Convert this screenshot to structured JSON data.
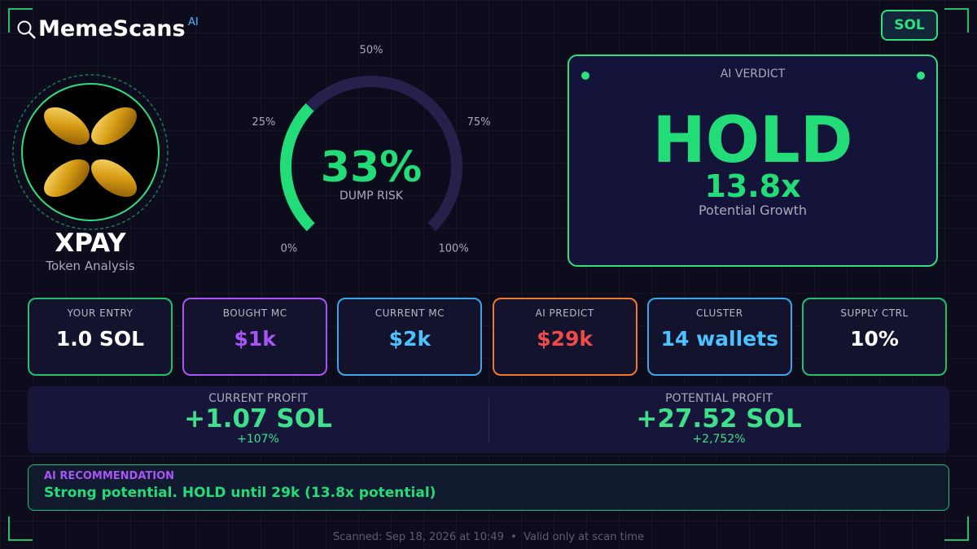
{
  "header": {
    "brand": "MemeScans",
    "brand_badge": "AI",
    "chain": "SOL"
  },
  "token": {
    "symbol": "XPAY",
    "subtitle": "Token Analysis"
  },
  "gauge": {
    "value": 33,
    "value_label": "33%",
    "label": "DUMP RISK",
    "lim": [
      0,
      100
    ],
    "ticks": [
      {
        "value": 0,
        "label": "0%"
      },
      {
        "value": 25,
        "label": "25%"
      },
      {
        "value": 50,
        "label": "50%"
      },
      {
        "value": 75,
        "label": "75%"
      },
      {
        "value": 100,
        "label": "100%"
      }
    ]
  },
  "verdict": {
    "label": "AI VERDICT",
    "decision": "HOLD",
    "growth": "13.8x",
    "growth_label": "Potential Growth"
  },
  "stats": [
    {
      "label": "YOUR ENTRY",
      "value": "1.0 SOL"
    },
    {
      "label": "BOUGHT MC",
      "value": "$1k"
    },
    {
      "label": "CURRENT MC",
      "value": "$2k"
    },
    {
      "label": "AI PREDICT",
      "value": "$29k"
    },
    {
      "label": "CLUSTER",
      "value": "14 wallets"
    },
    {
      "label": "SUPPLY CTRL",
      "value": "10%"
    }
  ],
  "profits": [
    {
      "label": "CURRENT PROFIT",
      "value": "+1.07 SOL",
      "percent": "+107%"
    },
    {
      "label": "POTENTIAL PROFIT",
      "value": "+27.52 SOL",
      "percent": "+2,752%"
    }
  ],
  "recommendation": {
    "title": "AI RECOMMENDATION",
    "text": "Strong potential. HOLD until 29k (13.8x potential)"
  },
  "footer": "Scanned: Sep 18, 2026 at 10:49  •  Valid only at scan time"
}
